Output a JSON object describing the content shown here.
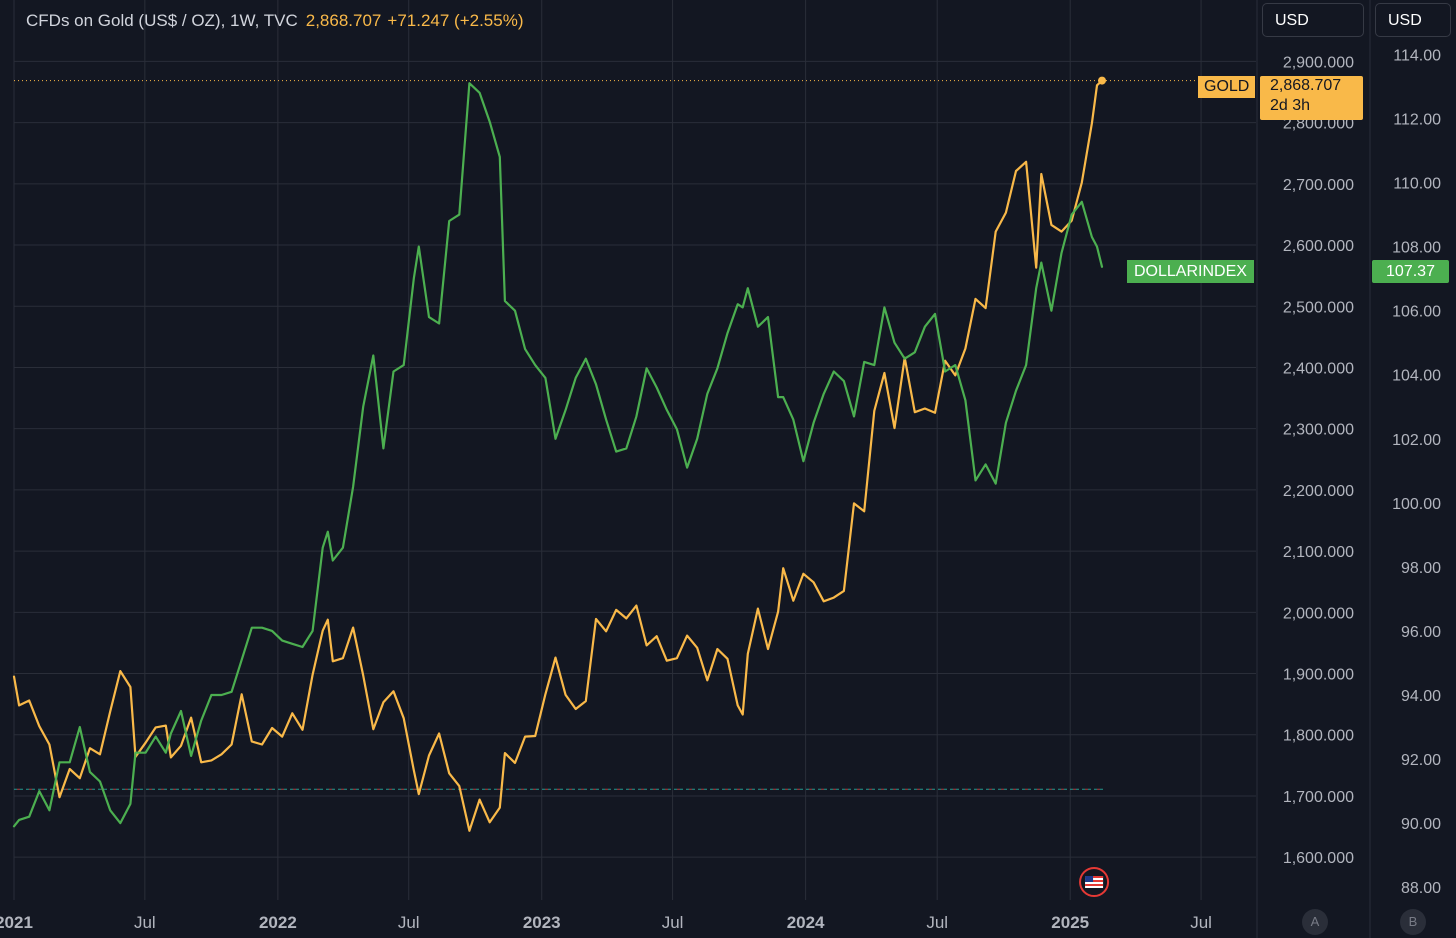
{
  "header": {
    "symbol": "CFDs on Gold (US$ / OZ), 1W, TVC",
    "price": "2,868.707",
    "change": "+71.247 (+2.55%)"
  },
  "currency_buttons": [
    "USD",
    "USD"
  ],
  "scale_buttons": [
    "A",
    "B"
  ],
  "tags": {
    "gold_name": "GOLD",
    "gold_price": "2,868.707",
    "gold_countdown": "2d 3h",
    "dxy_name": "DOLLARINDEX",
    "dxy_price": "107.37"
  },
  "colors": {
    "background": "#131722",
    "gold": "#f9b949",
    "dxy": "#4caf50",
    "grid": "#2a2e39",
    "axis_text": "#b2b5be"
  },
  "flag_icon": "us-flag-icon",
  "chart_data": {
    "type": "line",
    "x_labels": [
      "2021",
      "Jul",
      "2022",
      "Jul",
      "2023",
      "Jul",
      "2024",
      "Jul",
      "2025",
      "Jul"
    ],
    "x_range": [
      "2021-01-01",
      "2025-09-15"
    ],
    "right_axis_gold": {
      "ticks": [
        "1,600.000",
        "1,700.000",
        "1,800.000",
        "1,900.000",
        "2,000.000",
        "2,100.000",
        "2,200.000",
        "2,300.000",
        "2,400.000",
        "2,500.000",
        "2,600.000",
        "2,700.000",
        "2,800.000",
        "2,900.000"
      ],
      "range": [
        1530,
        2935
      ]
    },
    "right_axis_dxy": {
      "ticks": [
        "88.00",
        "90.00",
        "92.00",
        "94.00",
        "96.00",
        "98.00",
        "100.00",
        "102.00",
        "104.00",
        "106.00",
        "108.00",
        "110.00",
        "112.00",
        "114.00"
      ],
      "range": [
        87.6,
        114.45
      ]
    },
    "gold_reference_level": 1711,
    "series": [
      {
        "name": "GOLD",
        "axis": "gold",
        "points": [
          [
            "2021-01-01",
            1895
          ],
          [
            "2021-01-08",
            1848
          ],
          [
            "2021-01-22",
            1856
          ],
          [
            "2021-02-05",
            1814
          ],
          [
            "2021-02-19",
            1784
          ],
          [
            "2021-03-05",
            1698
          ],
          [
            "2021-03-19",
            1744
          ],
          [
            "2021-04-02",
            1729
          ],
          [
            "2021-04-16",
            1778
          ],
          [
            "2021-04-30",
            1768
          ],
          [
            "2021-05-14",
            1838
          ],
          [
            "2021-05-28",
            1904
          ],
          [
            "2021-06-11",
            1878
          ],
          [
            "2021-06-18",
            1764
          ],
          [
            "2021-07-02",
            1787
          ],
          [
            "2021-07-16",
            1812
          ],
          [
            "2021-07-30",
            1815
          ],
          [
            "2021-08-06",
            1763
          ],
          [
            "2021-08-20",
            1782
          ],
          [
            "2021-09-03",
            1828
          ],
          [
            "2021-09-17",
            1755
          ],
          [
            "2021-10-01",
            1758
          ],
          [
            "2021-10-15",
            1768
          ],
          [
            "2021-10-29",
            1784
          ],
          [
            "2021-11-12",
            1866
          ],
          [
            "2021-11-26",
            1789
          ],
          [
            "2021-12-10",
            1784
          ],
          [
            "2021-12-24",
            1811
          ],
          [
            "2022-01-07",
            1797
          ],
          [
            "2022-01-21",
            1835
          ],
          [
            "2022-02-04",
            1808
          ],
          [
            "2022-02-18",
            1898
          ],
          [
            "2022-03-04",
            1970
          ],
          [
            "2022-03-11",
            1988
          ],
          [
            "2022-03-18",
            1920
          ],
          [
            "2022-04-01",
            1925
          ],
          [
            "2022-04-15",
            1975
          ],
          [
            "2022-04-29",
            1897
          ],
          [
            "2022-05-13",
            1809
          ],
          [
            "2022-05-27",
            1853
          ],
          [
            "2022-06-10",
            1871
          ],
          [
            "2022-06-24",
            1827
          ],
          [
            "2022-07-08",
            1742
          ],
          [
            "2022-07-15",
            1703
          ],
          [
            "2022-07-29",
            1766
          ],
          [
            "2022-08-12",
            1802
          ],
          [
            "2022-08-26",
            1737
          ],
          [
            "2022-09-09",
            1716
          ],
          [
            "2022-09-23",
            1643
          ],
          [
            "2022-10-07",
            1694
          ],
          [
            "2022-10-21",
            1657
          ],
          [
            "2022-11-04",
            1681
          ],
          [
            "2022-11-11",
            1770
          ],
          [
            "2022-11-25",
            1754
          ],
          [
            "2022-12-09",
            1797
          ],
          [
            "2022-12-23",
            1798
          ],
          [
            "2023-01-06",
            1866
          ],
          [
            "2023-01-20",
            1926
          ],
          [
            "2023-02-03",
            1865
          ],
          [
            "2023-02-17",
            1842
          ],
          [
            "2023-03-03",
            1855
          ],
          [
            "2023-03-17",
            1989
          ],
          [
            "2023-03-31",
            1969
          ],
          [
            "2023-04-14",
            2004
          ],
          [
            "2023-04-28",
            1990
          ],
          [
            "2023-05-12",
            2011
          ],
          [
            "2023-05-26",
            1946
          ],
          [
            "2023-06-09",
            1961
          ],
          [
            "2023-06-23",
            1921
          ],
          [
            "2023-07-07",
            1925
          ],
          [
            "2023-07-21",
            1962
          ],
          [
            "2023-08-04",
            1942
          ],
          [
            "2023-08-18",
            1889
          ],
          [
            "2023-09-01",
            1940
          ],
          [
            "2023-09-15",
            1924
          ],
          [
            "2023-09-29",
            1848
          ],
          [
            "2023-10-06",
            1833
          ],
          [
            "2023-10-13",
            1932
          ],
          [
            "2023-10-27",
            2006
          ],
          [
            "2023-11-10",
            1940
          ],
          [
            "2023-11-24",
            2001
          ],
          [
            "2023-12-01",
            2072
          ],
          [
            "2023-12-15",
            2019
          ],
          [
            "2023-12-29",
            2063
          ],
          [
            "2024-01-12",
            2049
          ],
          [
            "2024-01-26",
            2018
          ],
          [
            "2024-02-09",
            2024
          ],
          [
            "2024-02-23",
            2035
          ],
          [
            "2024-03-08",
            2178
          ],
          [
            "2024-03-22",
            2165
          ],
          [
            "2024-04-05",
            2329
          ],
          [
            "2024-04-19",
            2391
          ],
          [
            "2024-05-03",
            2301
          ],
          [
            "2024-05-17",
            2416
          ],
          [
            "2024-05-31",
            2327
          ],
          [
            "2024-06-14",
            2333
          ],
          [
            "2024-06-28",
            2326
          ],
          [
            "2024-07-12",
            2411
          ],
          [
            "2024-07-26",
            2387
          ],
          [
            "2024-08-09",
            2431
          ],
          [
            "2024-08-23",
            2512
          ],
          [
            "2024-09-06",
            2497
          ],
          [
            "2024-09-20",
            2622
          ],
          [
            "2024-10-04",
            2653
          ],
          [
            "2024-10-18",
            2721
          ],
          [
            "2024-11-01",
            2736
          ],
          [
            "2024-11-15",
            2563
          ],
          [
            "2024-11-22",
            2716
          ],
          [
            "2024-12-06",
            2633
          ],
          [
            "2024-12-20",
            2622
          ],
          [
            "2025-01-03",
            2640
          ],
          [
            "2025-01-17",
            2702
          ],
          [
            "2025-01-31",
            2799
          ],
          [
            "2025-02-07",
            2861
          ],
          [
            "2025-02-14",
            2868.707
          ]
        ]
      },
      {
        "name": "DOLLARINDEX",
        "axis": "dxy",
        "points": [
          [
            "2021-01-01",
            89.9
          ],
          [
            "2021-01-08",
            90.1
          ],
          [
            "2021-01-22",
            90.2
          ],
          [
            "2021-02-05",
            91.0
          ],
          [
            "2021-02-19",
            90.4
          ],
          [
            "2021-03-05",
            91.9
          ],
          [
            "2021-03-19",
            91.9
          ],
          [
            "2021-04-02",
            93.0
          ],
          [
            "2021-04-16",
            91.6
          ],
          [
            "2021-04-30",
            91.3
          ],
          [
            "2021-05-14",
            90.4
          ],
          [
            "2021-05-28",
            90.0
          ],
          [
            "2021-06-11",
            90.6
          ],
          [
            "2021-06-18",
            92.2
          ],
          [
            "2021-07-02",
            92.2
          ],
          [
            "2021-07-16",
            92.7
          ],
          [
            "2021-07-30",
            92.2
          ],
          [
            "2021-08-06",
            92.8
          ],
          [
            "2021-08-20",
            93.5
          ],
          [
            "2021-09-03",
            92.1
          ],
          [
            "2021-09-17",
            93.2
          ],
          [
            "2021-10-01",
            94.0
          ],
          [
            "2021-10-15",
            94.0
          ],
          [
            "2021-10-29",
            94.1
          ],
          [
            "2021-11-12",
            95.1
          ],
          [
            "2021-11-26",
            96.1
          ],
          [
            "2021-12-10",
            96.1
          ],
          [
            "2021-12-24",
            96.0
          ],
          [
            "2022-01-07",
            95.7
          ],
          [
            "2022-01-21",
            95.6
          ],
          [
            "2022-02-04",
            95.5
          ],
          [
            "2022-02-18",
            96.0
          ],
          [
            "2022-03-04",
            98.6
          ],
          [
            "2022-03-11",
            99.1
          ],
          [
            "2022-03-18",
            98.2
          ],
          [
            "2022-04-01",
            98.6
          ],
          [
            "2022-04-15",
            100.5
          ],
          [
            "2022-04-29",
            103.0
          ],
          [
            "2022-05-13",
            104.6
          ],
          [
            "2022-05-27",
            101.7
          ],
          [
            "2022-06-10",
            104.1
          ],
          [
            "2022-06-24",
            104.3
          ],
          [
            "2022-07-08",
            107.0
          ],
          [
            "2022-07-15",
            108.0
          ],
          [
            "2022-07-29",
            105.8
          ],
          [
            "2022-08-12",
            105.6
          ],
          [
            "2022-08-26",
            108.8
          ],
          [
            "2022-09-09",
            109.0
          ],
          [
            "2022-09-23",
            113.1
          ],
          [
            "2022-10-07",
            112.8
          ],
          [
            "2022-10-21",
            111.9
          ],
          [
            "2022-11-04",
            110.8
          ],
          [
            "2022-11-11",
            106.3
          ],
          [
            "2022-11-25",
            106.0
          ],
          [
            "2022-12-09",
            104.8
          ],
          [
            "2022-12-23",
            104.3
          ],
          [
            "2023-01-06",
            103.9
          ],
          [
            "2023-01-20",
            102.0
          ],
          [
            "2023-02-03",
            102.9
          ],
          [
            "2023-02-17",
            103.9
          ],
          [
            "2023-03-03",
            104.5
          ],
          [
            "2023-03-17",
            103.7
          ],
          [
            "2023-03-31",
            102.6
          ],
          [
            "2023-04-14",
            101.6
          ],
          [
            "2023-04-28",
            101.7
          ],
          [
            "2023-05-12",
            102.7
          ],
          [
            "2023-05-26",
            104.2
          ],
          [
            "2023-06-09",
            103.6
          ],
          [
            "2023-06-23",
            102.9
          ],
          [
            "2023-07-07",
            102.3
          ],
          [
            "2023-07-21",
            101.1
          ],
          [
            "2023-08-04",
            102.0
          ],
          [
            "2023-08-18",
            103.4
          ],
          [
            "2023-09-01",
            104.2
          ],
          [
            "2023-09-15",
            105.3
          ],
          [
            "2023-09-29",
            106.2
          ],
          [
            "2023-10-06",
            106.1
          ],
          [
            "2023-10-13",
            106.7
          ],
          [
            "2023-10-27",
            105.5
          ],
          [
            "2023-11-10",
            105.8
          ],
          [
            "2023-11-24",
            103.3
          ],
          [
            "2023-12-01",
            103.3
          ],
          [
            "2023-12-15",
            102.6
          ],
          [
            "2023-12-29",
            101.3
          ],
          [
            "2024-01-12",
            102.5
          ],
          [
            "2024-01-26",
            103.4
          ],
          [
            "2024-02-09",
            104.1
          ],
          [
            "2024-02-23",
            103.8
          ],
          [
            "2024-03-08",
            102.7
          ],
          [
            "2024-03-22",
            104.4
          ],
          [
            "2024-04-05",
            104.3
          ],
          [
            "2024-04-19",
            106.1
          ],
          [
            "2024-05-03",
            105.0
          ],
          [
            "2024-05-17",
            104.5
          ],
          [
            "2024-05-31",
            104.7
          ],
          [
            "2024-06-14",
            105.5
          ],
          [
            "2024-06-28",
            105.9
          ],
          [
            "2024-07-12",
            104.1
          ],
          [
            "2024-07-26",
            104.3
          ],
          [
            "2024-08-09",
            103.2
          ],
          [
            "2024-08-23",
            100.7
          ],
          [
            "2024-09-06",
            101.2
          ],
          [
            "2024-09-20",
            100.6
          ],
          [
            "2024-10-04",
            102.5
          ],
          [
            "2024-10-18",
            103.5
          ],
          [
            "2024-11-01",
            104.3
          ],
          [
            "2024-11-15",
            106.7
          ],
          [
            "2024-11-22",
            107.5
          ],
          [
            "2024-12-06",
            106.0
          ],
          [
            "2024-12-20",
            107.8
          ],
          [
            "2025-01-03",
            109.0
          ],
          [
            "2025-01-17",
            109.4
          ],
          [
            "2025-01-31",
            108.3
          ],
          [
            "2025-02-07",
            108.0
          ],
          [
            "2025-02-14",
            107.37
          ]
        ]
      }
    ]
  }
}
